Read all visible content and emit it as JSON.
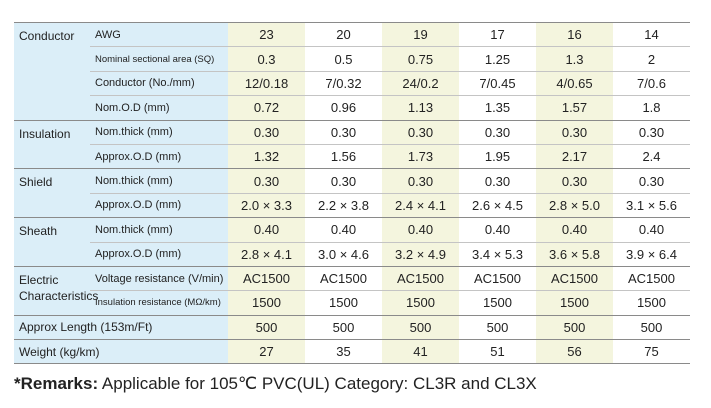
{
  "table": {
    "rows": [
      {
        "group": "Conductor",
        "label": "AWG",
        "values": [
          "23",
          "20",
          "19",
          "17",
          "16",
          "14"
        ]
      },
      {
        "label": "Nominal sectional area (SQ)",
        "values": [
          "0.3",
          "0.5",
          "0.75",
          "1.25",
          "1.3",
          "2"
        ]
      },
      {
        "label": "Conductor (No./mm)",
        "values": [
          "12/0.18",
          "7/0.32",
          "24/0.2",
          "7/0.45",
          "4/0.65",
          "7/0.6"
        ]
      },
      {
        "label": "Nom.O.D (mm)",
        "values": [
          "0.72",
          "0.96",
          "1.13",
          "1.35",
          "1.57",
          "1.8"
        ]
      },
      {
        "group": "Insulation",
        "label": "Nom.thick (mm)",
        "values": [
          "0.30",
          "0.30",
          "0.30",
          "0.30",
          "0.30",
          "0.30"
        ]
      },
      {
        "label": "Approx.O.D (mm)",
        "values": [
          "1.32",
          "1.56",
          "1.73",
          "1.95",
          "2.17",
          "2.4"
        ]
      },
      {
        "group": "Shield",
        "label": "Nom.thick (mm)",
        "values": [
          "0.30",
          "0.30",
          "0.30",
          "0.30",
          "0.30",
          "0.30"
        ]
      },
      {
        "label": "Approx.O.D (mm)",
        "values": [
          "2.0 × 3.3",
          "2.2 × 3.8",
          "2.4 × 4.1",
          "2.6 × 4.5",
          "2.8 × 5.0",
          "3.1 × 5.6"
        ]
      },
      {
        "group": "Sheath",
        "label": "Nom.thick (mm)",
        "values": [
          "0.40",
          "0.40",
          "0.40",
          "0.40",
          "0.40",
          "0.40"
        ]
      },
      {
        "label": "Approx.O.D (mm)",
        "values": [
          "2.8 × 4.1",
          "3.0 × 4.6",
          "3.2 × 4.9",
          "3.4 × 5.3",
          "3.6 × 5.8",
          "3.9 × 6.4"
        ]
      },
      {
        "group": "Electric Characteristics",
        "label": "Voltage resistance (V/min)",
        "values": [
          "AC1500",
          "AC1500",
          "AC1500",
          "AC1500",
          "AC1500",
          "AC1500"
        ]
      },
      {
        "label": "Insulation resistance (MΩ/km)",
        "values": [
          "1500",
          "1500",
          "1500",
          "1500",
          "1500",
          "1500"
        ]
      },
      {
        "group": "Approx Length (153m/Ft)",
        "values": [
          "500",
          "500",
          "500",
          "500",
          "500",
          "500"
        ]
      },
      {
        "group": "Weight (kg/km)",
        "values": [
          "27",
          "35",
          "41",
          "51",
          "56",
          "75"
        ]
      }
    ],
    "remarks": {
      "label": "*Remarks:",
      "text": "Applicable for 105℃ PVC(UL) Category: CL3R and CL3X"
    }
  }
}
